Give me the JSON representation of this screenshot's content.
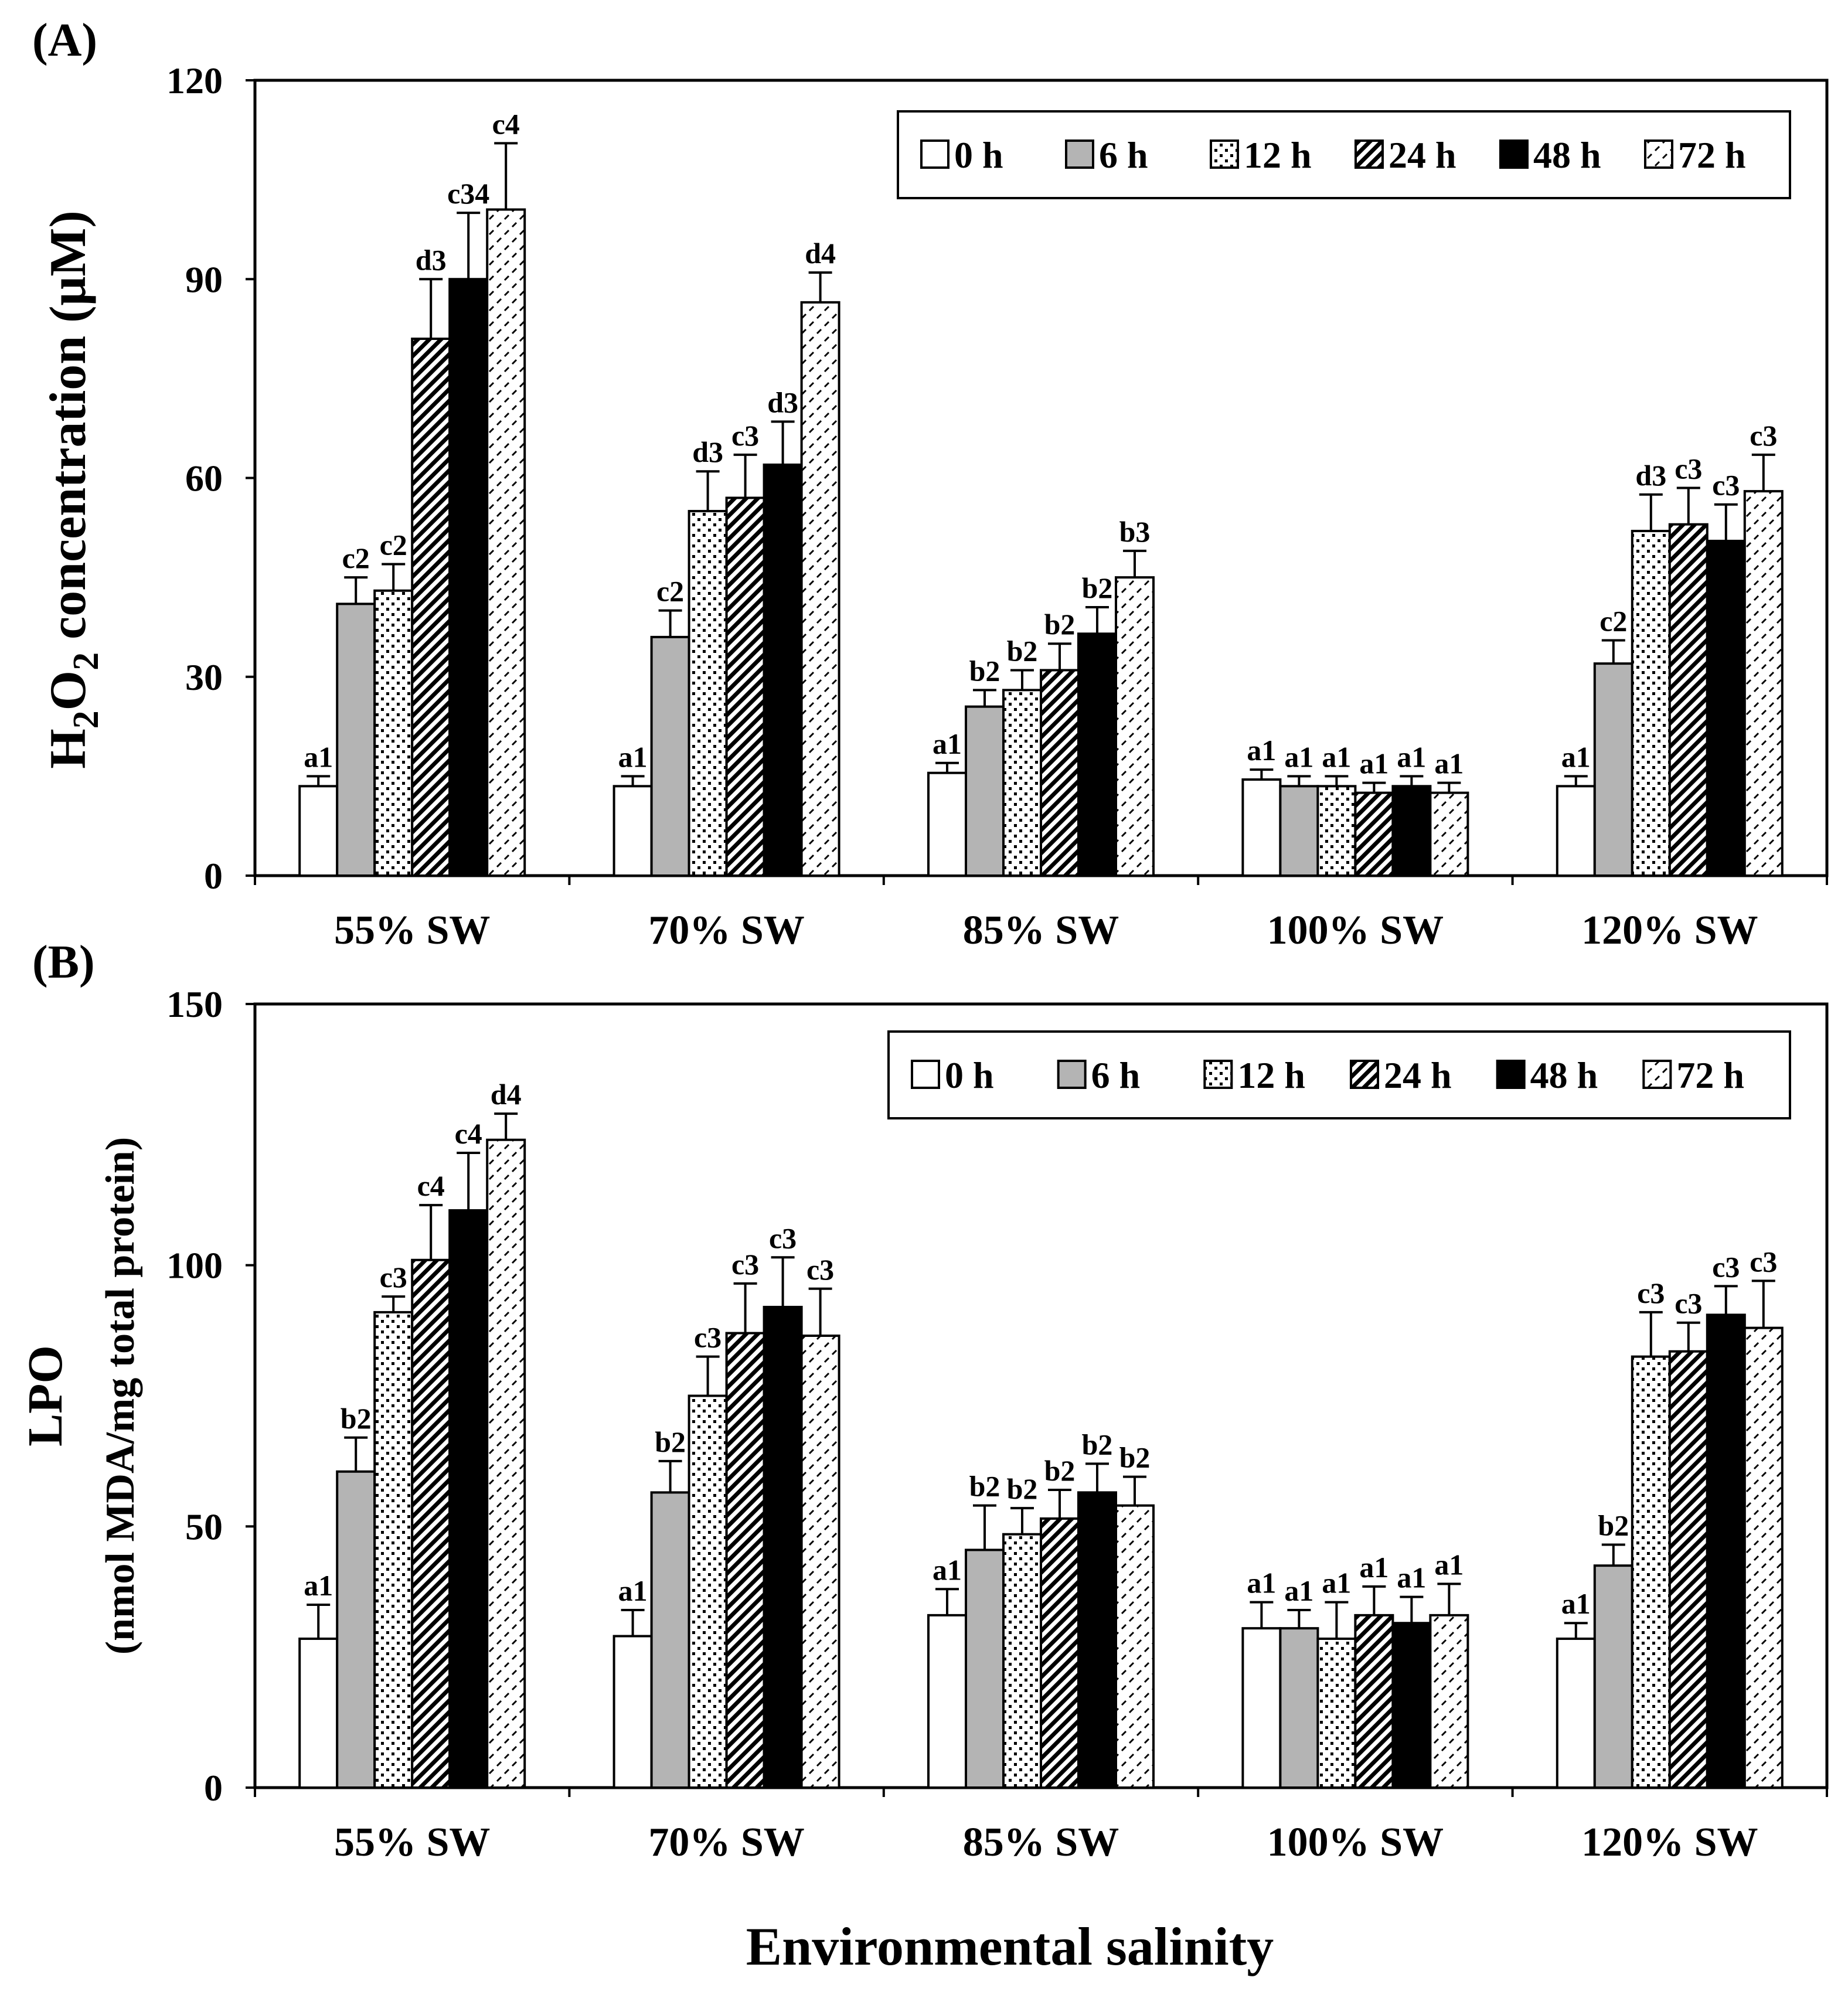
{
  "x_axis_title": "Environmental salinity",
  "series_names": [
    "0 h",
    "6 h",
    "12 h",
    "24 h",
    "48 h",
    "72 h"
  ],
  "chart_data": [
    {
      "type": "bar",
      "panel_label": "(A)",
      "ylabel": "H2O2 concentration (μM)",
      "ylabel_parts": [
        "H",
        "2",
        "O",
        "2",
        " concentration  (μM)"
      ],
      "ylim": [
        0,
        120
      ],
      "yticks": [
        "0",
        "30",
        "60",
        "90",
        "120"
      ],
      "categories": [
        "55% SW",
        "70% SW",
        "85% SW",
        "100% SW",
        "120% SW"
      ],
      "legend_position": "top-right",
      "series": [
        {
          "name": "0 h",
          "values": [
            13.5,
            13.5,
            15.5,
            14.5,
            13.5
          ],
          "errors": [
            1.5,
            1.5,
            1.5,
            1.5,
            1.5
          ],
          "labels": [
            "a1",
            "a1",
            "a1",
            "a1",
            "a1"
          ]
        },
        {
          "name": "6 h",
          "values": [
            41,
            36,
            25.5,
            13.5,
            32
          ],
          "errors": [
            4,
            4,
            2.5,
            1.5,
            3.5
          ],
          "labels": [
            "c2",
            "c2",
            "b2",
            "a1",
            "c2"
          ]
        },
        {
          "name": "12 h",
          "values": [
            43,
            55,
            28,
            13.5,
            52
          ],
          "errors": [
            4,
            6,
            3,
            1.5,
            5.5
          ],
          "labels": [
            "c2",
            "d3",
            "b2",
            "a1",
            "d3"
          ]
        },
        {
          "name": "24 h",
          "values": [
            81,
            57,
            31,
            12.5,
            53
          ],
          "errors": [
            9,
            6.5,
            4,
            1.5,
            5.5
          ],
          "labels": [
            "d3",
            "c3",
            "b2",
            "a1",
            "c3"
          ]
        },
        {
          "name": "48 h",
          "values": [
            90,
            62,
            36.5,
            13.5,
            50.5
          ],
          "errors": [
            10,
            6.5,
            4,
            1.5,
            5.5
          ],
          "labels": [
            "c34",
            "d3",
            "b2",
            "a1",
            "c3"
          ]
        },
        {
          "name": "72 h",
          "values": [
            100.5,
            86.5,
            45,
            12.5,
            58
          ],
          "errors": [
            10,
            4.5,
            4,
            1.5,
            5.5
          ],
          "labels": [
            "c4",
            "d4",
            "b3",
            "a1",
            "c3"
          ]
        }
      ]
    },
    {
      "type": "bar",
      "panel_label": "(B)",
      "ylabel": "LPO (nmol MDA/mg total protein)",
      "ylabel_lines": [
        "LPO",
        "(nmol MDA/mg total protein)"
      ],
      "ylim": [
        0,
        150
      ],
      "yticks": [
        "0",
        "50",
        "100",
        "150"
      ],
      "categories": [
        "55% SW",
        "70% SW",
        "85% SW",
        "100% SW",
        "120% SW"
      ],
      "legend_position": "top-right",
      "series": [
        {
          "name": "0 h",
          "values": [
            28.5,
            29,
            33,
            30.5,
            28.5
          ],
          "errors": [
            6.5,
            5,
            5,
            5,
            3
          ],
          "labels": [
            "a1",
            "a1",
            "a1",
            "a1",
            "a1"
          ]
        },
        {
          "name": "6 h",
          "values": [
            60.5,
            56.5,
            45.5,
            30.5,
            42.5
          ],
          "errors": [
            6.5,
            6,
            8.5,
            3.5,
            4
          ],
          "labels": [
            "b2",
            "b2",
            "b2",
            "a1",
            "b2"
          ]
        },
        {
          "name": "12 h",
          "values": [
            91,
            75,
            48.5,
            28.5,
            82.5
          ],
          "errors": [
            3,
            7.5,
            5,
            7,
            8.5
          ],
          "labels": [
            "c3",
            "c3",
            "b2",
            "a1",
            "c3"
          ]
        },
        {
          "name": "24 h",
          "values": [
            101,
            87,
            51.5,
            33,
            83.5
          ],
          "errors": [
            10.5,
            9.5,
            5.5,
            5.5,
            5.5
          ],
          "labels": [
            "c4",
            "c3",
            "b2",
            "a1",
            "c3"
          ]
        },
        {
          "name": "48 h",
          "values": [
            110.5,
            92,
            56.5,
            31.5,
            90.5
          ],
          "errors": [
            11,
            9.5,
            5.5,
            5,
            5.5
          ],
          "labels": [
            "c4",
            "c3",
            "b2",
            "a1",
            "c3"
          ]
        },
        {
          "name": "72 h",
          "values": [
            124,
            86.5,
            54,
            33,
            88
          ],
          "errors": [
            5,
            9,
            5.5,
            6,
            9
          ],
          "labels": [
            "d4",
            "c3",
            "b2",
            "a1",
            "c3"
          ]
        }
      ]
    }
  ]
}
